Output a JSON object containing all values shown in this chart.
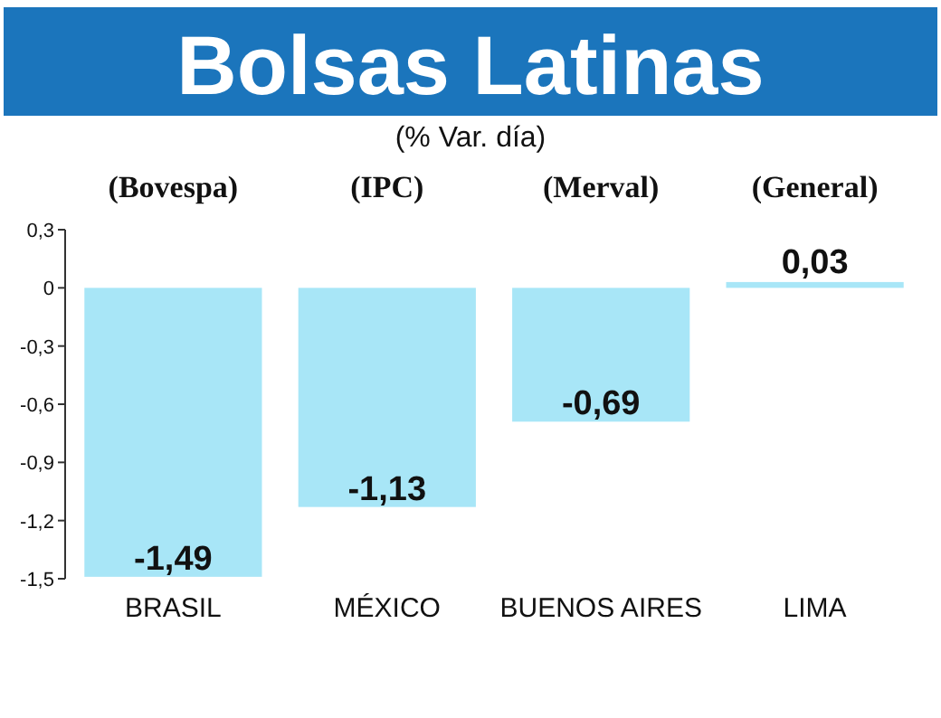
{
  "chart_data": {
    "type": "bar",
    "title": "Bolsas Latinas",
    "subtitle": "(% Var. día)",
    "categories": [
      "BRASIL",
      "MÉXICO",
      "BUENOS AIRES",
      "LIMA"
    ],
    "values": [
      -1.49,
      -1.13,
      -0.69,
      0.03
    ],
    "value_labels": [
      "-1,49",
      "-1,13",
      "-0,69",
      "0,03"
    ],
    "color": "#a8e6f7",
    "annotations": [
      "(Bovespa)",
      "(IPC)",
      "(Merval)",
      "(General)"
    ],
    "ylim": [
      -1.5,
      0.3
    ],
    "yticks": [
      {
        "value": 0.3,
        "label": "0,3"
      },
      0,
      {
        "value": -0.3,
        "label": "-0,3"
      },
      {
        "value": -0.6,
        "label": "-0,6"
      },
      {
        "value": -0.9,
        "label": "-0,9"
      },
      {
        "value": -1.2,
        "label": "-1,2"
      },
      {
        "value": -1.5,
        "label": "-1,5"
      }
    ],
    "grid": false
  }
}
